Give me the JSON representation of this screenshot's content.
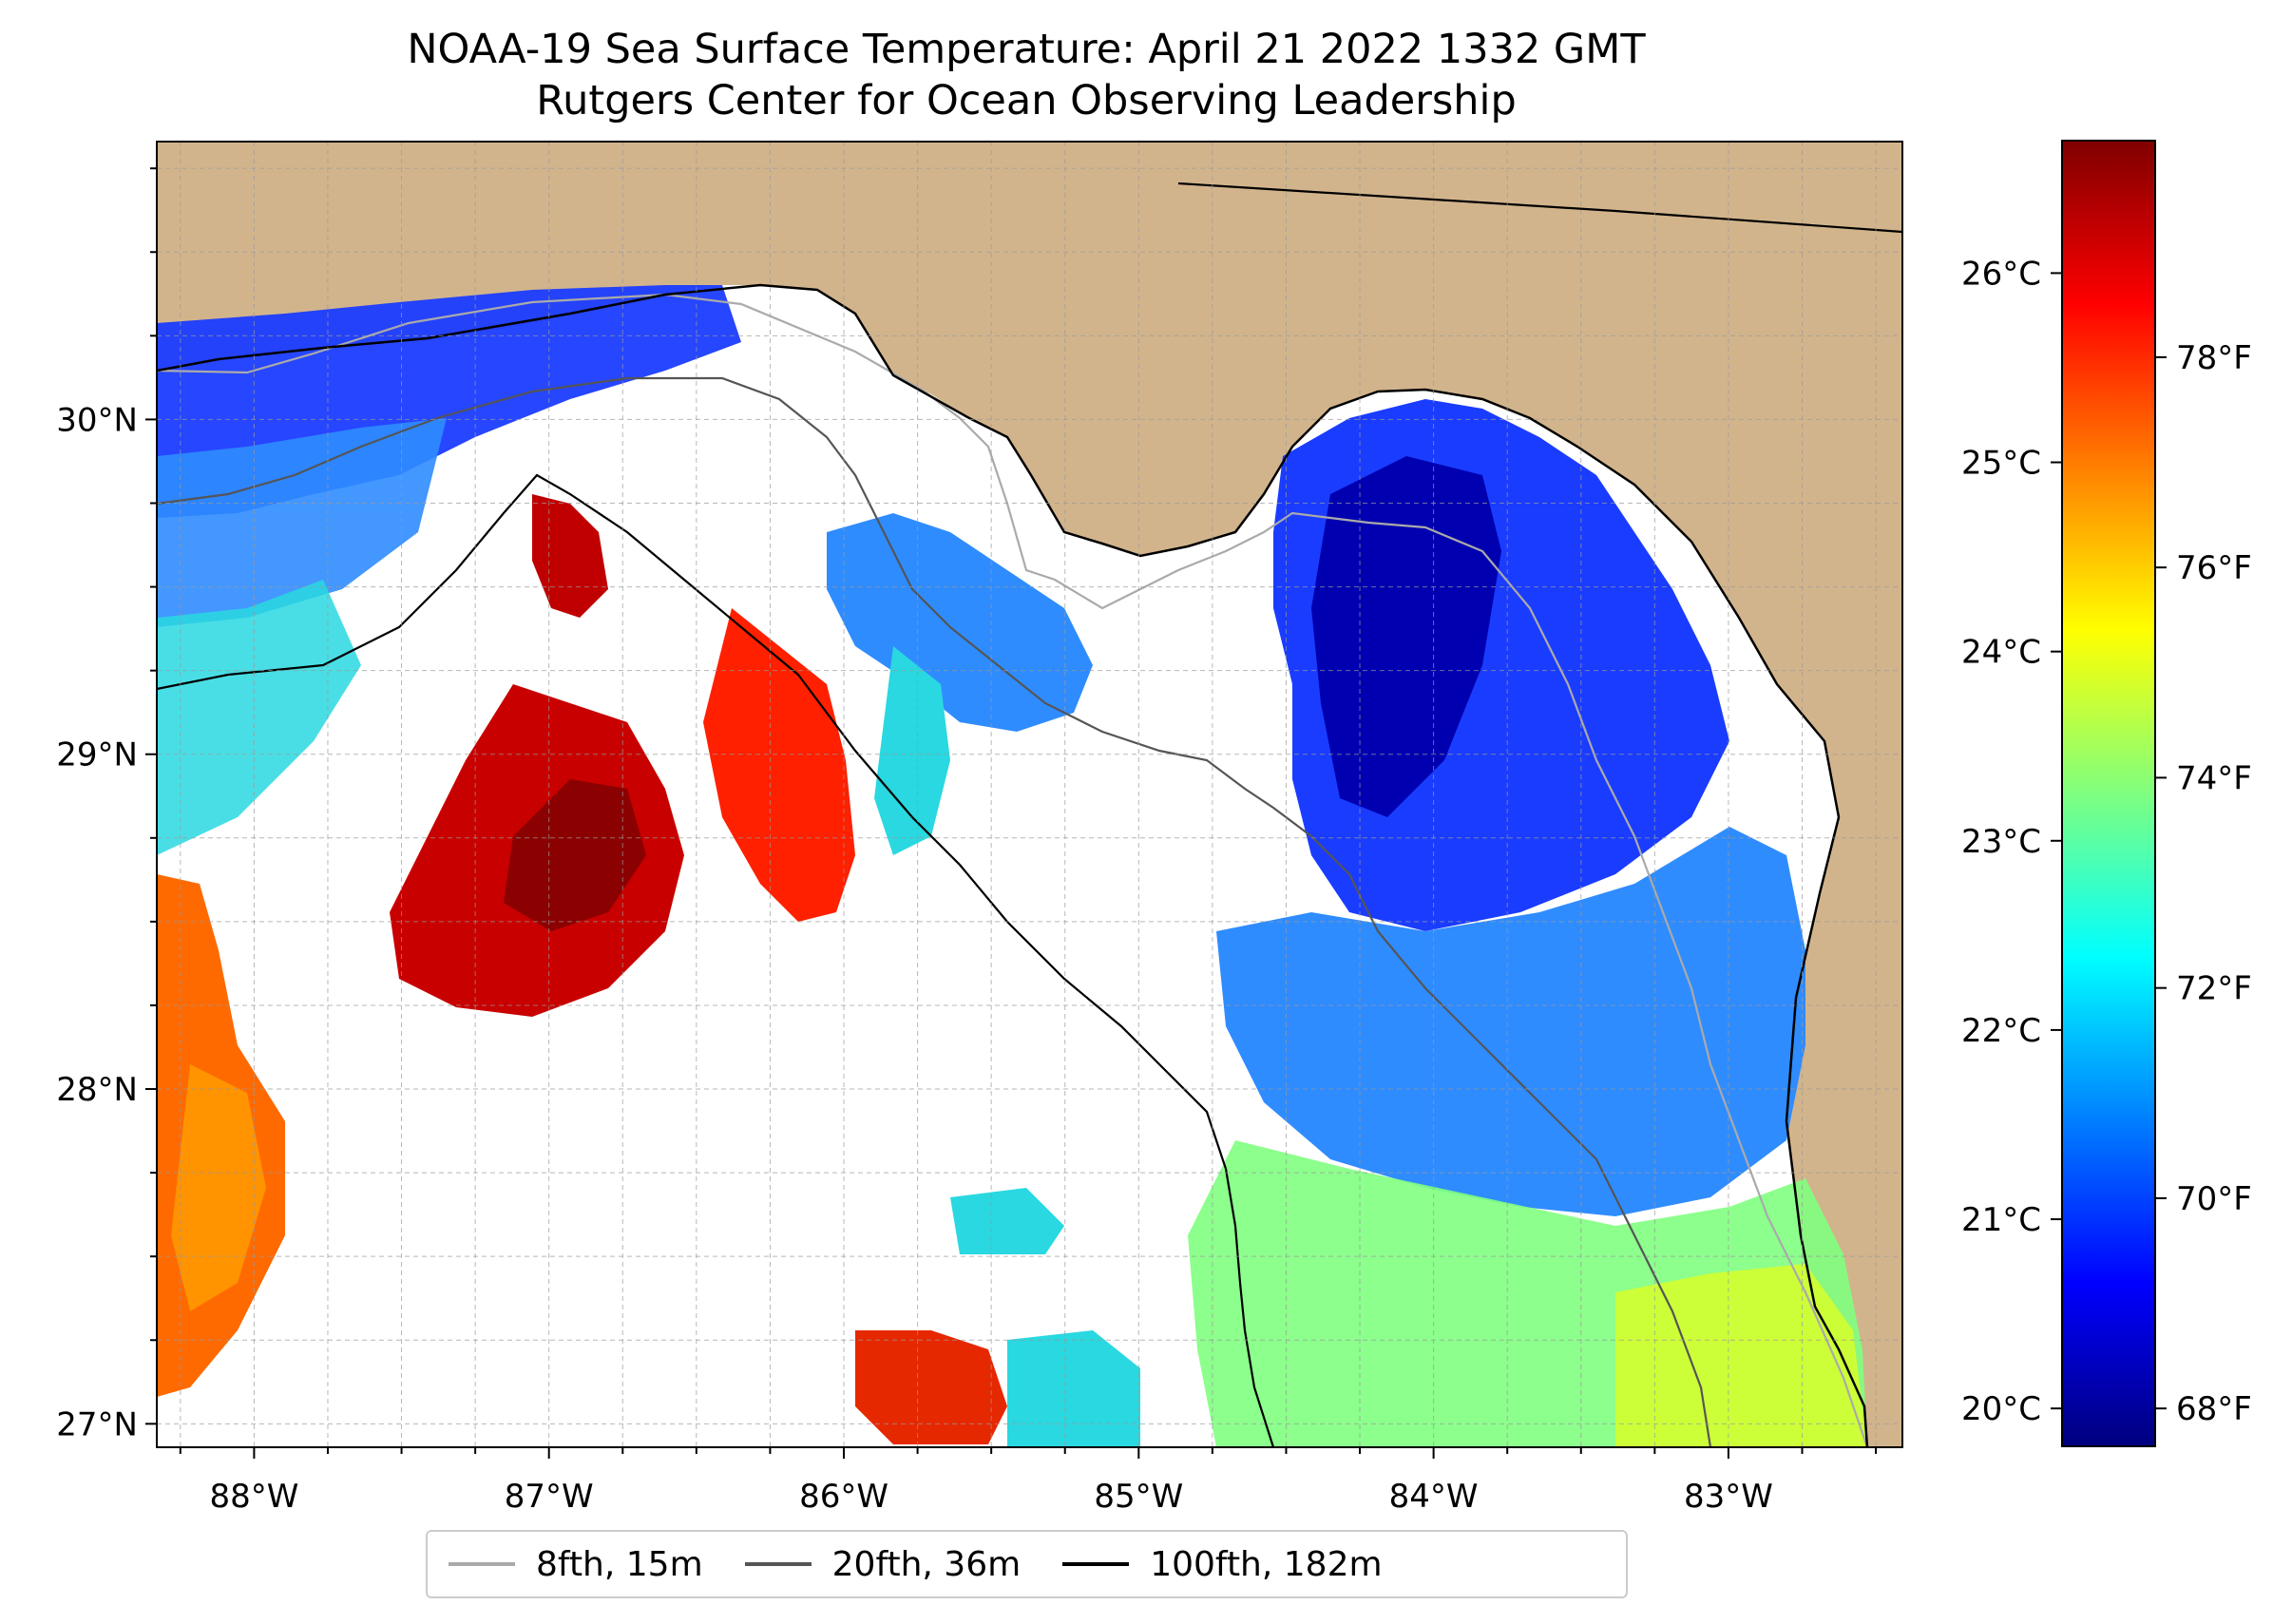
{
  "title": {
    "line1": "NOAA-19 Sea Surface Temperature: April 21 2022 1332 GMT",
    "line2": "Rutgers Center for Ocean Observing Leadership"
  },
  "map": {
    "lon_range": [
      -88.33,
      -82.41
    ],
    "lat_range": [
      26.93,
      30.83
    ],
    "grid": true,
    "land_color": "#d2b48c",
    "lon_ticks": [
      {
        "value": -88,
        "label": "88°W"
      },
      {
        "value": -87,
        "label": "87°W"
      },
      {
        "value": -86,
        "label": "86°W"
      },
      {
        "value": -85,
        "label": "85°W"
      },
      {
        "value": -84,
        "label": "84°W"
      },
      {
        "value": -83,
        "label": "83°W"
      }
    ],
    "lat_ticks": [
      {
        "value": 30,
        "label": "30°N"
      },
      {
        "value": 29,
        "label": "29°N"
      },
      {
        "value": 28,
        "label": "28°N"
      },
      {
        "value": 27,
        "label": "27°N"
      }
    ]
  },
  "colorbar": {
    "colormap": "jet",
    "colors": [
      "#00007f",
      "#0000ff",
      "#007fff",
      "#00ffff",
      "#7fff7f",
      "#ffff00",
      "#ff7f00",
      "#ff0000",
      "#7f0000"
    ],
    "range_celsius": [
      19.8,
      26.7
    ],
    "celsius_ticks": [
      {
        "value": 20,
        "label": "20°C"
      },
      {
        "value": 21,
        "label": "21°C"
      },
      {
        "value": 22,
        "label": "22°C"
      },
      {
        "value": 23,
        "label": "23°C"
      },
      {
        "value": 24,
        "label": "24°C"
      },
      {
        "value": 25,
        "label": "25°C"
      },
      {
        "value": 26,
        "label": "26°C"
      }
    ],
    "fahrenheit_ticks": [
      {
        "value": 68,
        "label": "68°F"
      },
      {
        "value": 70,
        "label": "70°F"
      },
      {
        "value": 72,
        "label": "72°F"
      },
      {
        "value": 74,
        "label": "74°F"
      },
      {
        "value": 76,
        "label": "76°F"
      },
      {
        "value": 78,
        "label": "78°F"
      }
    ]
  },
  "legend": [
    {
      "label": "8fth, 15m",
      "color": "#aaaaaa"
    },
    {
      "label": "20fth, 36m",
      "color": "#555555"
    },
    {
      "label": "100fth, 182m",
      "color": "#000000"
    }
  ]
}
